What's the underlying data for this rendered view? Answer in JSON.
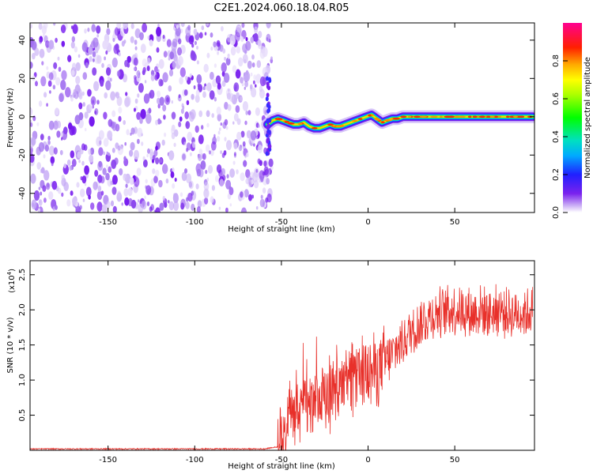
{
  "title": "C2E1.2024.060.18.04.R05",
  "chart_data": [
    {
      "type": "heatmap",
      "xlabel": "Height of straight line (km)",
      "ylabel": "Frequency (Hz)",
      "xlim": [
        -195,
        96
      ],
      "ylim": [
        -50,
        49
      ],
      "xticks": [
        -150,
        -100,
        -50,
        0,
        50
      ],
      "yticks": [
        -40,
        -20,
        0,
        20,
        40
      ],
      "noise_region_x": [
        -195,
        -58
      ],
      "signal_trace": {
        "x": [
          -58,
          -55,
          -52,
          -49,
          -46,
          -43,
          -40,
          -37,
          -34,
          -31,
          -28,
          -25,
          -22,
          -19,
          -16,
          -13,
          -10,
          -7,
          -4,
          -1,
          2,
          5,
          8,
          11,
          14,
          17,
          20,
          25,
          30,
          35,
          40,
          45,
          50,
          55,
          60,
          65,
          70,
          75,
          80,
          85,
          90,
          95
        ],
        "y": [
          -4,
          -2,
          -1,
          -2,
          -3,
          -4,
          -4,
          -3,
          -5,
          -6,
          -6,
          -5,
          -4,
          -5,
          -5,
          -4,
          -3,
          -2,
          -1,
          0,
          1,
          -1,
          -3,
          -2,
          -1,
          -1,
          0,
          0,
          0,
          0,
          0,
          0,
          0,
          0,
          0,
          0,
          0,
          0,
          0,
          0,
          0,
          0
        ]
      },
      "colorbar": {
        "label": "Normalized spectral amplitude",
        "range": [
          0,
          1
        ],
        "ticks": [
          "0.0",
          "0.2",
          "0.4",
          "0.6",
          "0.8"
        ]
      }
    },
    {
      "type": "line",
      "xlabel": "Height of straight line (km)",
      "ylabel": "SNR (10 * v/v)",
      "yscale_label": "(x10",
      "yscale_exp": "4",
      "yscale_close": ")",
      "xlim": [
        -195,
        96
      ],
      "ylim": [
        0,
        2.7
      ],
      "xticks": [
        -150,
        -100,
        -50,
        0,
        50
      ],
      "yticks": [
        "0.5",
        "1.0",
        "1.5",
        "2.0",
        "2.5"
      ],
      "series": [
        {
          "color": "#e8302a",
          "x": [
            -195,
            -150,
            -100,
            -60,
            -52,
            -48,
            -45,
            -42,
            -40,
            -36,
            -32,
            -29,
            -25,
            -20,
            -15,
            -10,
            -5,
            0,
            5,
            10,
            15,
            20,
            25,
            30,
            35,
            40,
            45,
            50,
            55,
            60,
            65,
            70,
            75,
            80,
            85,
            90,
            95
          ],
          "y": [
            0.02,
            0.02,
            0.02,
            0.02,
            0.05,
            0.25,
            0.45,
            0.55,
            0.6,
            0.6,
            0.6,
            0.65,
            0.7,
            0.8,
            0.9,
            0.95,
            1.05,
            1.1,
            1.15,
            1.25,
            1.4,
            1.55,
            1.7,
            1.8,
            1.9,
            1.95,
            2.0,
            2.0,
            2.0,
            1.95,
            2.0,
            1.95,
            2.0,
            1.95,
            1.95,
            1.95,
            2.0
          ]
        }
      ]
    }
  ]
}
